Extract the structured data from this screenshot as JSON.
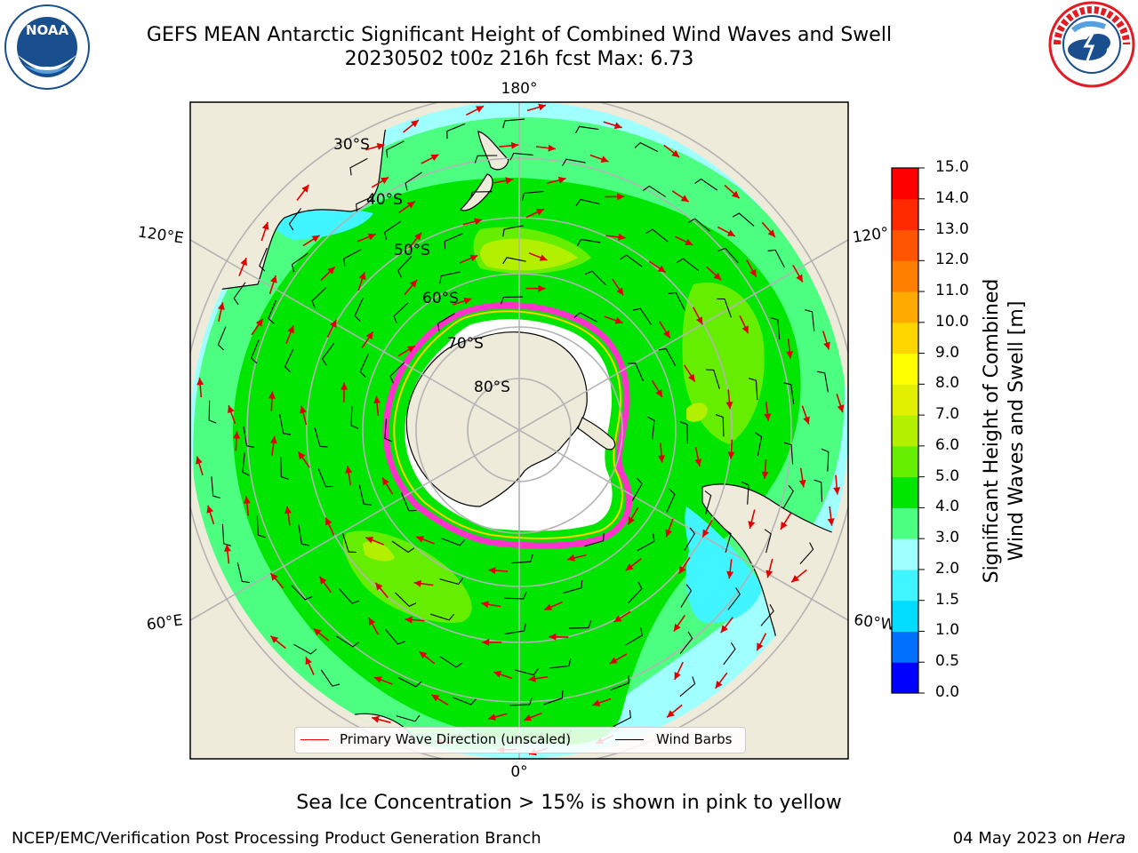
{
  "header": {
    "title_line1": "GEFS MEAN Antarctic Significant Height of Combined Wind Waves and Swell",
    "title_line2": "20230502 t00z 216h fcst   Max: 6.73"
  },
  "map": {
    "projection": "south-polar-stereographic",
    "longitude_labels": [
      "180°",
      "120°E",
      "120°",
      "60°E",
      "60°W",
      "0°"
    ],
    "latitude_labels": [
      "30°S",
      "40°S",
      "50°S",
      "60°S",
      "70°S",
      "80°S"
    ]
  },
  "colorbar": {
    "label_line1": "Significant Height of Combined",
    "label_line2": "Wind Waves and Swell [m]",
    "ticks": [
      "0.0",
      "0.5",
      "1.0",
      "1.5",
      "2.0",
      "3.0",
      "4.0",
      "5.0",
      "6.0",
      "7.0",
      "8.0",
      "9.0",
      "10.0",
      "11.0",
      "12.0",
      "13.0",
      "14.0",
      "15.0"
    ],
    "colors": [
      "#0000ff",
      "#0070ff",
      "#00ddff",
      "#40f5ff",
      "#a0ffff",
      "#4dff80",
      "#00e600",
      "#66ee00",
      "#b3f000",
      "#e0f000",
      "#ffff00",
      "#ffd600",
      "#ffaa00",
      "#ff8000",
      "#ff5500",
      "#ff2a00",
      "#ff0000"
    ]
  },
  "legend": {
    "items": [
      {
        "label": "Primary Wave Direction (unscaled)",
        "color": "#ff0000"
      },
      {
        "label": "Wind Barbs",
        "color": "#000000"
      }
    ]
  },
  "footer": {
    "sea_ice_note": "Sea Ice Concentration > 15% is shown in pink to yellow",
    "credit": "NCEP/EMC/Verification Post Processing Product Generation Branch",
    "date": "04 May 2023 on",
    "machine": "Hera"
  },
  "logos": {
    "left": "noaa-logo",
    "right": "nws-logo",
    "left_color": "#1a4f8f",
    "right_color": "#e31b23"
  }
}
